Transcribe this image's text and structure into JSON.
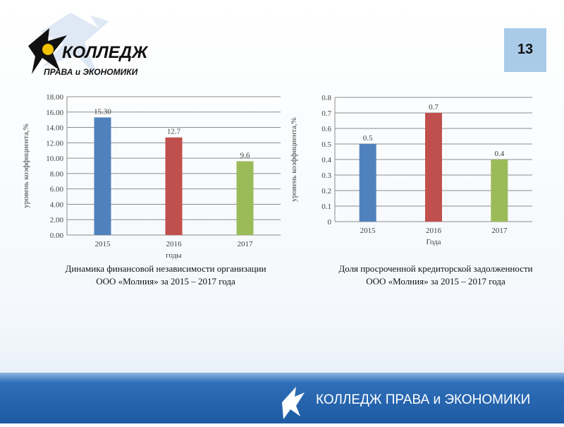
{
  "slide_number": 13,
  "logo": {
    "line1": "КОЛЛЕДЖ",
    "line2": "ПРАВА и ЭКОНОМИКИ"
  },
  "footer": "КОЛЛЕДЖ ПРАВА и ЭКОНОМИКИ",
  "chart_data": [
    {
      "type": "bar",
      "title": [
        "Динамика финансовой независимости организации",
        "ООО «Молния» за 2015 – 2017 года"
      ],
      "x_label": "годы",
      "y_label": "уровень коэффициента,%",
      "categories": [
        "2015",
        "2016",
        "2017"
      ],
      "values": [
        15.3,
        12.7,
        9.6
      ],
      "value_labels": [
        "15.30",
        "12.7",
        "9.6"
      ],
      "colors": [
        "#4f81bd",
        "#c0504d",
        "#9bbb59"
      ],
      "ylim": [
        0,
        18
      ],
      "yticks": [
        {
          "value": 0,
          "label": "0.00"
        },
        {
          "value": 2,
          "label": "2.00"
        },
        {
          "value": 4,
          "label": "4.00"
        },
        {
          "value": 6,
          "label": "6.00"
        },
        {
          "value": 8,
          "label": "8.00"
        },
        {
          "value": 10,
          "label": "10.00"
        },
        {
          "value": 12,
          "label": "12.00"
        },
        {
          "value": 14,
          "label": "14.00"
        },
        {
          "value": 16,
          "label": "16.00"
        },
        {
          "value": 18,
          "label": "18.00"
        }
      ],
      "grid": true
    },
    {
      "type": "bar",
      "title": [
        "Доля просроченной кредиторской задолженности",
        "ООО «Молния» за 2015 – 2017 года"
      ],
      "x_label": "Года",
      "y_label": "уровень коэффициента,%",
      "categories": [
        "2015",
        "2016",
        "2017"
      ],
      "values": [
        0.5,
        0.7,
        0.4
      ],
      "colors": [
        "#4f81bd",
        "#c0504d",
        "#9bbb59"
      ],
      "ylim": [
        0,
        0.8
      ],
      "yticks": [
        0,
        0.1,
        0.2,
        0.3,
        0.4,
        0.5,
        0.6,
        0.7,
        0.8
      ],
      "grid": true
    }
  ]
}
